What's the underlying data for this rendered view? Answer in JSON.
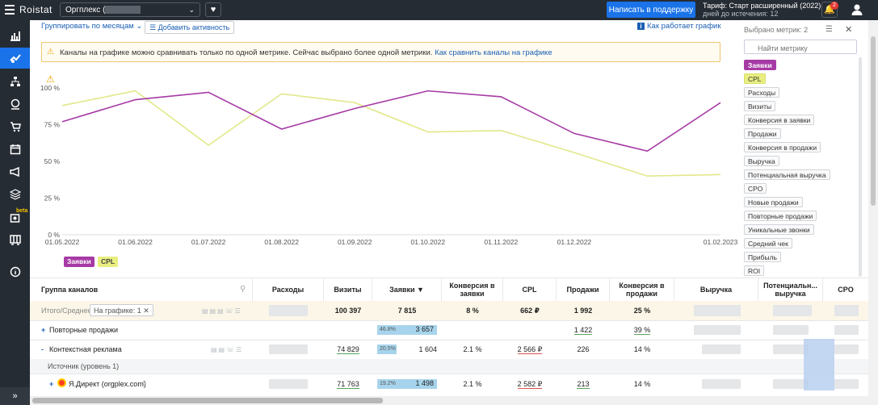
{
  "topbar": {
    "logo": "Roistat",
    "project": "Оргплекс (",
    "support_label": "Написать в поддержку",
    "tariff_line1": "Тариф: Старт расширенный (2022)",
    "tariff_line2": "дней до истечения: 12",
    "notif_count": "2"
  },
  "toolbar": {
    "group_by": "Группировать по месяцам",
    "add_activity": "Добавить активность",
    "how_works": "Как работает график"
  },
  "alert": {
    "text": "Каналы на графике можно сравнивать только по одной метрике. Сейчас выбрано более одной метрики.",
    "link": "Как сравнить каналы на графике"
  },
  "metrics_panel": {
    "title": "Выбрано метрик: 2",
    "search_placeholder": "Найти метрику",
    "items": [
      "Заявки",
      "CPL",
      "Расходы",
      "Визиты",
      "Конверсия в заявки",
      "Продажи",
      "Конверсия в продажи",
      "Выручка",
      "Потенциальная выручка",
      "CPO",
      "Новые продажи",
      "Повторные продажи",
      "Уникальные звонки",
      "Средний чек",
      "Прибыль",
      "ROI"
    ]
  },
  "chart_data": {
    "type": "line",
    "x": [
      "01.05.2022",
      "01.06.2022",
      "01.07.2022",
      "01.08.2022",
      "01.09.2022",
      "01.10.2022",
      "01.11.2022",
      "01.12.2022",
      "01.01.2023",
      "01.02.2023"
    ],
    "x_tick_labels": [
      "01.05.2022",
      "01.06.2022",
      "01.07.2022",
      "01.08.2022",
      "01.09.2022",
      "01.10.2022",
      "01.11.2022",
      "01.12.2022",
      "01.02.2023"
    ],
    "y_ticks": [
      "0 %",
      "25 %",
      "50 %",
      "75 %",
      "100 %"
    ],
    "ylim": [
      0,
      100
    ],
    "series": [
      {
        "name": "Заявки",
        "color": "#a63aa5",
        "values": [
          77,
          92,
          97,
          72,
          86,
          98,
          94,
          69,
          57,
          90
        ]
      },
      {
        "name": "CPL",
        "color": "#e2e88a",
        "values": [
          88,
          98,
          61,
          96,
          90,
          70,
          71,
          56,
          40,
          41
        ]
      }
    ],
    "legend": "bottom-left",
    "grid": false
  },
  "table": {
    "headers": {
      "group": "Группа каналов",
      "expenses": "Расходы",
      "visits": "Визиты",
      "leads": "Заявки ▼",
      "conv_leads": "Конверсия в заявки",
      "cpl": "CPL",
      "sales": "Продажи",
      "conv_sales": "Конверсия в продажи",
      "revenue": "Выручка",
      "pot_revenue": "Потенциальн... выручка",
      "cpo": "CPO"
    },
    "total": {
      "label": "Итого/Среднее",
      "on_chart": "На графике: 1",
      "visits": "100 397",
      "leads": "7 815",
      "conv_leads": "8 %",
      "cpl": "662 ₽",
      "sales": "1 992",
      "conv_sales": "25 %"
    },
    "rows": [
      {
        "prefix": "+",
        "label": "Повторные продажи",
        "bar_pct": "46.8%",
        "leads": "3 657",
        "sales": "1 422",
        "conv_sales": "39 %"
      },
      {
        "prefix": "-",
        "label": "Контекстная реклама",
        "visits": "74 829",
        "bar_pct": "20.5%",
        "leads": "1 604",
        "conv_leads": "2.1 %",
        "cpl": "2 566 ₽",
        "sales": "226",
        "conv_sales": "14 %"
      },
      {
        "label": "Источник (уровень 1)"
      },
      {
        "prefix": "+",
        "label": "Я.Директ (orgplex.com)",
        "visits": "71 763",
        "bar_pct": "19.2%",
        "leads": "1 498",
        "conv_leads": "2.1 %",
        "cpl": "2 582 ₽",
        "sales": "213",
        "conv_sales": "14 %"
      }
    ]
  }
}
